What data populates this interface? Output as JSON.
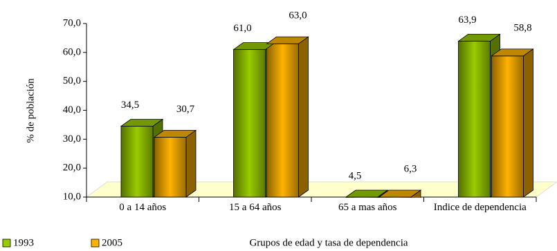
{
  "chart_data": {
    "type": "bar3d",
    "x_label": "Grupos de edad y tasa de dependencia",
    "y_label": "% de población",
    "categories": [
      "0 a 14 años",
      "15 a 64 años",
      "65 a mas años",
      "Indice de dependencia"
    ],
    "series": [
      {
        "name": "1993",
        "color": "#99cc00",
        "values": [
          34.5,
          61.0,
          4.5,
          63.9
        ],
        "value_labels": [
          "34,5",
          "61,0",
          "4,5",
          "63,9"
        ]
      },
      {
        "name": "2005",
        "color": "#ffb300",
        "values": [
          30.7,
          63.0,
          6.3,
          58.8
        ],
        "value_labels": [
          "30,7",
          "63,0",
          "6,3",
          "58,8"
        ]
      }
    ],
    "ylim": [
      10,
      70
    ],
    "yticks": [
      {
        "value": 10,
        "label": "10,0"
      },
      {
        "value": 20,
        "label": "20,0"
      },
      {
        "value": 30,
        "label": "30,0"
      },
      {
        "value": 40,
        "label": "40,0"
      },
      {
        "value": 50,
        "label": "50,0"
      },
      {
        "value": 60,
        "label": "60,0"
      },
      {
        "value": 70,
        "label": "70,0"
      }
    ]
  }
}
